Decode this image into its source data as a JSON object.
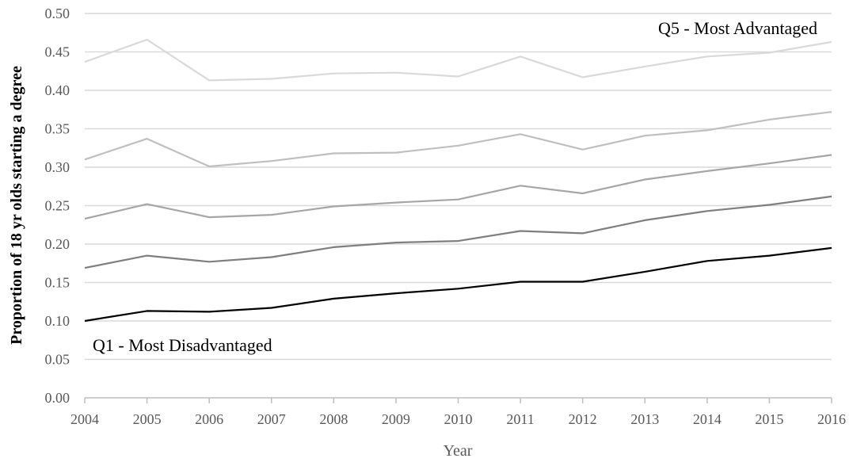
{
  "chart_data": {
    "type": "line",
    "title": "",
    "xlabel": "Year",
    "ylabel": "Proportion of 18 yr olds starting a degree",
    "ylim": [
      0,
      0.5
    ],
    "y_ticks": [
      "0.00",
      "0.05",
      "0.10",
      "0.15",
      "0.20",
      "0.25",
      "0.30",
      "0.35",
      "0.40",
      "0.45",
      "0.50"
    ],
    "x": [
      "2004",
      "2005",
      "2006",
      "2007",
      "2008",
      "2009",
      "2010",
      "2011",
      "2012",
      "2013",
      "2014",
      "2015",
      "2016"
    ],
    "grid": true,
    "annotations": {
      "top": "Q5 - Most Advantaged",
      "bottom": "Q1 - Most Disadvantaged"
    },
    "series": [
      {
        "color": "#000000",
        "values": [
          0.1,
          0.113,
          0.112,
          0.117,
          0.129,
          0.136,
          0.142,
          0.151,
          0.151,
          0.164,
          0.178,
          0.185,
          0.195
        ]
      },
      {
        "color": "#7f7f7f",
        "values": [
          0.169,
          0.185,
          0.177,
          0.183,
          0.196,
          0.202,
          0.204,
          0.217,
          0.214,
          0.231,
          0.243,
          0.251,
          0.262
        ]
      },
      {
        "color": "#a6a6a6",
        "values": [
          0.233,
          0.252,
          0.235,
          0.238,
          0.249,
          0.254,
          0.258,
          0.276,
          0.266,
          0.284,
          0.295,
          0.305,
          0.316
        ]
      },
      {
        "color": "#bfbfbf",
        "values": [
          0.31,
          0.337,
          0.301,
          0.308,
          0.318,
          0.319,
          0.328,
          0.343,
          0.323,
          0.341,
          0.348,
          0.362,
          0.372
        ]
      },
      {
        "color": "#d9d9d9",
        "values": [
          0.437,
          0.466,
          0.413,
          0.415,
          0.422,
          0.423,
          0.418,
          0.444,
          0.417,
          0.431,
          0.444,
          0.449,
          0.463
        ]
      }
    ]
  }
}
